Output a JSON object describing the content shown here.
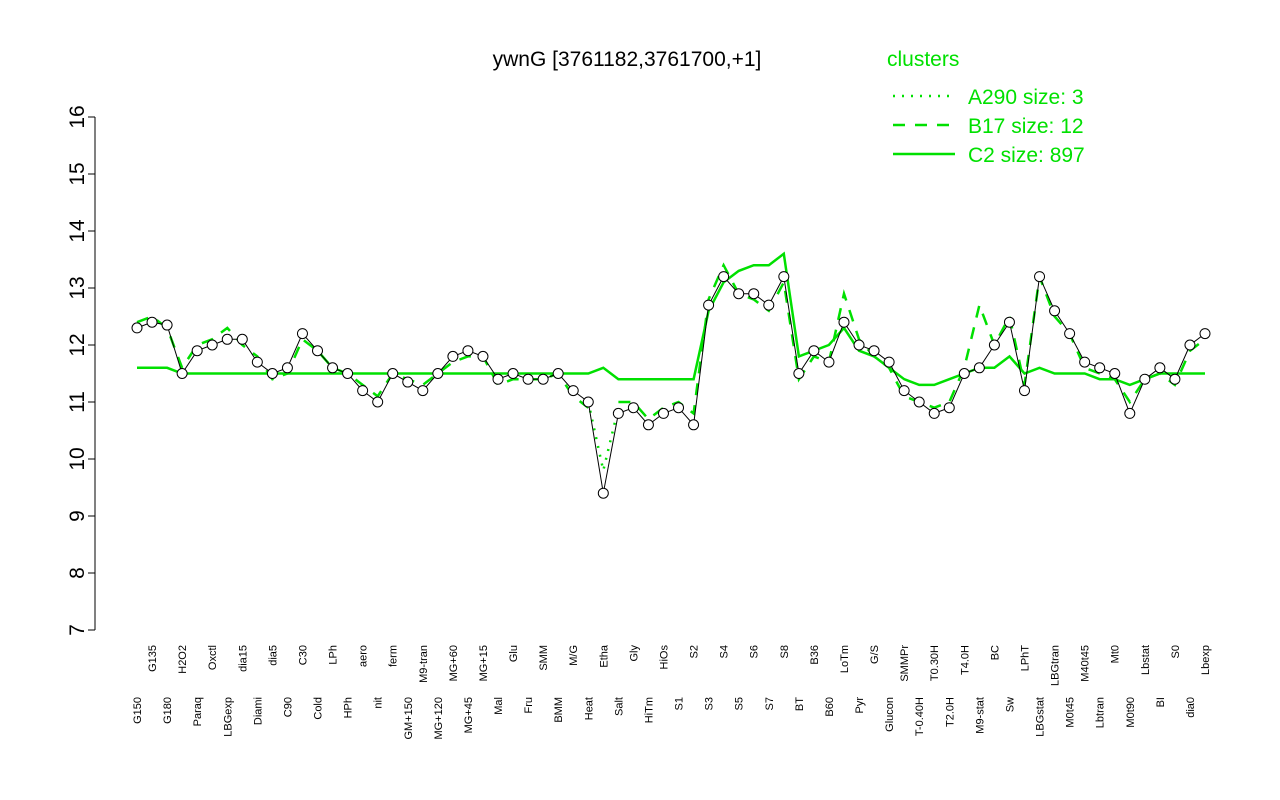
{
  "chart_data": {
    "type": "line",
    "title": "ywnG [3761182,3761700,+1]",
    "legend_title": "clusters",
    "legend_position": "top-right",
    "categories": [
      "G150",
      "G135",
      "G180",
      "H2O2",
      "Paraq",
      "Oxctl",
      "LBGexp",
      "dia15",
      "Diami",
      "dia5",
      "C90",
      "C30",
      "Cold",
      "LPh",
      "HPh",
      "aero",
      "nit",
      "ferm",
      "GM+150",
      "M9-tran",
      "MG+120",
      "MG+60",
      "MG+45",
      "MG+15",
      "Mal",
      "Glu",
      "Fru",
      "SMM",
      "BMM",
      "M/G",
      "Heat",
      "Etha",
      "Salt",
      "Gly",
      "HiTm",
      "HiOs",
      "S1",
      "S2",
      "S3",
      "S4",
      "S5",
      "S6",
      "S7",
      "S8",
      "BT",
      "B36",
      "B60",
      "LoTm",
      "Pyr",
      "G/S",
      "Glucon",
      "SMMPr",
      "T-0.40H",
      "T0.30H",
      "T2.0H",
      "T4.0H",
      "M9-stat",
      "BC",
      "Sw",
      "LPhT",
      "LBGstat",
      "LBGtran",
      "M0t45",
      "M40t45",
      "Lbtran",
      "Mt0",
      "M0t90",
      "Lbstat",
      "BI",
      "S0",
      "dia0",
      "Lbexp"
    ],
    "values": [
      12.3,
      12.4,
      12.35,
      11.5,
      11.9,
      12.0,
      12.1,
      12.1,
      11.7,
      11.5,
      11.6,
      12.2,
      11.9,
      11.6,
      11.5,
      11.2,
      11.0,
      11.5,
      11.35,
      11.2,
      11.5,
      11.8,
      11.9,
      11.8,
      11.4,
      11.5,
      11.4,
      11.4,
      11.5,
      11.2,
      11.0,
      9.4,
      10.8,
      10.9,
      10.6,
      10.8,
      10.9,
      10.6,
      12.7,
      13.2,
      12.9,
      12.9,
      12.7,
      13.2,
      11.5,
      11.9,
      11.7,
      12.4,
      12.0,
      11.9,
      11.7,
      11.2,
      11.0,
      10.8,
      10.9,
      11.5,
      11.6,
      12.0,
      12.4,
      11.2,
      13.2,
      12.6,
      12.2,
      11.7,
      11.6,
      11.5,
      10.8,
      11.4,
      11.6,
      11.4,
      12.0,
      12.2
    ],
    "series": [
      {
        "name": "A290 size: 3",
        "color": "#00e000",
        "style": "dotted",
        "values": [
          null,
          null,
          null,
          null,
          null,
          null,
          null,
          null,
          null,
          null,
          null,
          null,
          null,
          null,
          null,
          null,
          null,
          null,
          null,
          null,
          null,
          null,
          null,
          null,
          null,
          null,
          null,
          null,
          null,
          null,
          11.0,
          9.8,
          10.9,
          null,
          null,
          null,
          null,
          null,
          null,
          null,
          null,
          null,
          null,
          null,
          null,
          null,
          null,
          null,
          null,
          null,
          null,
          null,
          null,
          null,
          null,
          null,
          null,
          null,
          null,
          null,
          null,
          null,
          null,
          null,
          null,
          null,
          null,
          null,
          null,
          null,
          null,
          null
        ]
      },
      {
        "name": "B17 size: 12",
        "color": "#00e000",
        "style": "dashed",
        "values": [
          12.4,
          12.5,
          12.3,
          11.6,
          12.0,
          12.1,
          12.3,
          12.0,
          11.8,
          11.4,
          11.5,
          12.1,
          11.9,
          11.6,
          11.5,
          11.3,
          11.1,
          11.5,
          11.4,
          11.3,
          11.5,
          11.7,
          11.8,
          11.8,
          11.3,
          11.4,
          11.4,
          11.4,
          11.5,
          11.1,
          10.9,
          null,
          11.0,
          11.0,
          10.7,
          10.9,
          11.0,
          10.8,
          12.8,
          13.4,
          12.9,
          12.8,
          12.6,
          13.1,
          11.4,
          11.8,
          11.7,
          12.9,
          12.1,
          11.8,
          11.6,
          11.1,
          11.0,
          10.9,
          11.0,
          11.6,
          12.7,
          12.0,
          12.5,
          11.3,
          13.2,
          12.5,
          12.2,
          11.6,
          11.5,
          11.4,
          11.0,
          11.4,
          11.5,
          11.3,
          11.9,
          12.1
        ]
      },
      {
        "name": "C2 size: 897",
        "color": "#00e000",
        "style": "solid",
        "values": [
          11.6,
          11.6,
          11.6,
          11.5,
          11.5,
          11.5,
          11.5,
          11.5,
          11.5,
          11.5,
          11.5,
          11.5,
          11.5,
          11.5,
          11.5,
          11.5,
          11.5,
          11.5,
          11.5,
          11.5,
          11.5,
          11.5,
          11.5,
          11.5,
          11.5,
          11.5,
          11.5,
          11.5,
          11.5,
          11.5,
          11.5,
          11.6,
          11.4,
          11.4,
          11.4,
          11.4,
          11.4,
          11.4,
          12.6,
          13.1,
          13.3,
          13.4,
          13.4,
          13.6,
          11.8,
          11.9,
          12.0,
          12.3,
          11.9,
          11.8,
          11.6,
          11.4,
          11.3,
          11.3,
          11.4,
          11.5,
          11.6,
          11.6,
          11.8,
          11.5,
          11.6,
          11.5,
          11.5,
          11.5,
          11.4,
          11.4,
          11.3,
          11.4,
          11.5,
          11.5,
          11.5,
          11.5
        ]
      }
    ],
    "ylim": [
      7,
      16
    ],
    "yticks": [
      7,
      8,
      9,
      10,
      11,
      12,
      13,
      14,
      15,
      16
    ],
    "grid": false
  }
}
